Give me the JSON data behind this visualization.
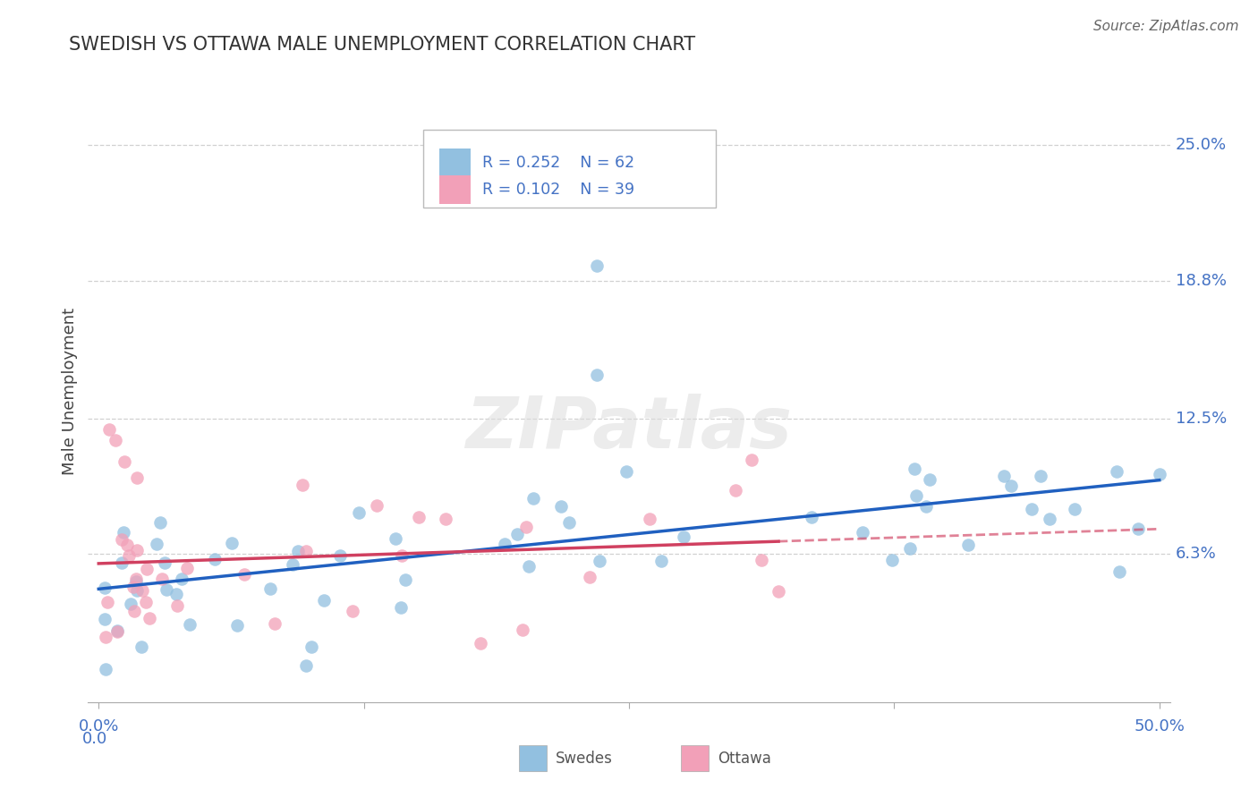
{
  "title": "SWEDISH VS OTTAWA MALE UNEMPLOYMENT CORRELATION CHART",
  "source": "Source: ZipAtlas.com",
  "ylabel": "Male Unemployment",
  "ytick_values": [
    0.063,
    0.125,
    0.188,
    0.25
  ],
  "ytick_labels": [
    "6.3%",
    "12.5%",
    "18.8%",
    "25.0%"
  ],
  "xlim": [
    0.0,
    0.5
  ],
  "ylim": [
    0.0,
    0.28
  ],
  "legend_blue_r": "R = 0.252",
  "legend_blue_n": "N = 62",
  "legend_pink_r": "R = 0.102",
  "legend_pink_n": "N = 39",
  "blue_color": "#92c0e0",
  "pink_color": "#f2a0b8",
  "trend_blue_color": "#2060c0",
  "trend_pink_color": "#d04060",
  "watermark": "ZIPatlas",
  "blue_label": "Swedes",
  "pink_label": "Ottawa"
}
